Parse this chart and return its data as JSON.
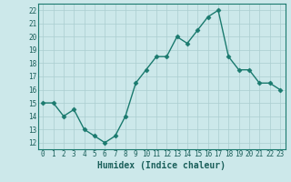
{
  "x": [
    0,
    1,
    2,
    3,
    4,
    5,
    6,
    7,
    8,
    9,
    10,
    11,
    12,
    13,
    14,
    15,
    16,
    17,
    18,
    19,
    20,
    21,
    22,
    23
  ],
  "y": [
    15,
    15,
    14,
    14.5,
    13,
    12.5,
    12,
    12.5,
    14,
    16.5,
    17.5,
    18.5,
    18.5,
    20,
    19.5,
    20.5,
    21.5,
    22,
    18.5,
    17.5,
    17.5,
    16.5,
    16.5,
    16
  ],
  "line_color": "#1a7a6e",
  "marker": "D",
  "marker_size": 2.5,
  "bg_color": "#cce8ea",
  "grid_color": "#aacdd0",
  "xlabel": "Humidex (Indice chaleur)",
  "xlim": [
    -0.5,
    23.5
  ],
  "ylim": [
    11.5,
    22.5
  ],
  "yticks": [
    12,
    13,
    14,
    15,
    16,
    17,
    18,
    19,
    20,
    21,
    22
  ],
  "xticks": [
    0,
    1,
    2,
    3,
    4,
    5,
    6,
    7,
    8,
    9,
    10,
    11,
    12,
    13,
    14,
    15,
    16,
    17,
    18,
    19,
    20,
    21,
    22,
    23
  ],
  "tick_fontsize": 5.5,
  "xlabel_fontsize": 7,
  "tick_color": "#1a5f5a",
  "spine_color": "#1a7a6e"
}
